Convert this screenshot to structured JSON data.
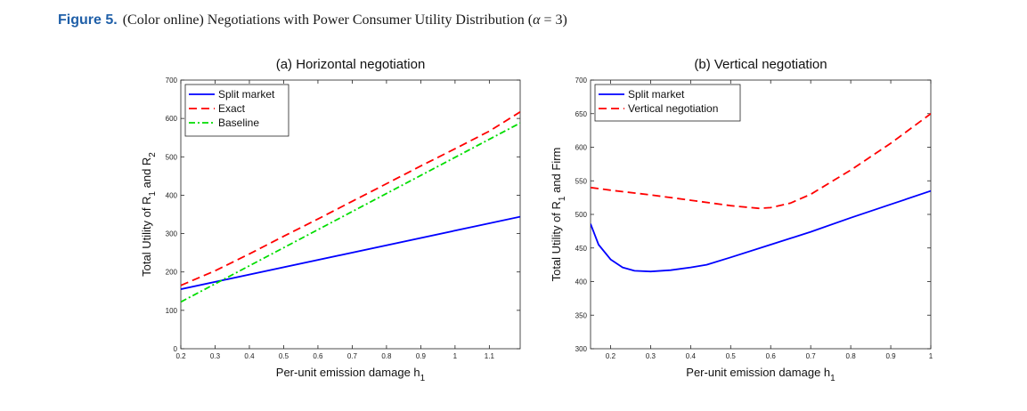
{
  "caption": {
    "figure_label": "Figure 5.",
    "text_before": "(Color online) Negotiations with Power Consumer Utility Distribution (",
    "alpha_symbol": "α",
    "text_after": " = 3)"
  },
  "chart_data": [
    {
      "type": "line",
      "title": "(a) Horizontal negotiation",
      "xlabel": "Per-unit emission damage h",
      "xlabel_sub": "1",
      "ylabel_parts": [
        "Total Utility of R",
        "1",
        " and R",
        "2"
      ],
      "xlim": [
        0.2,
        1.19
      ],
      "ylim": [
        0,
        700
      ],
      "xticks": [
        "0.2",
        "0.3",
        "0.4",
        "0.5",
        "0.6",
        "0.7",
        "0.8",
        "0.9",
        "1",
        "1.1"
      ],
      "yticks": [
        "0",
        "100",
        "200",
        "300",
        "400",
        "500",
        "600",
        "700"
      ],
      "legend_position": "top-left",
      "series": [
        {
          "name": "Split market",
          "color": "#0000ff",
          "dash": "solid",
          "x": [
            0.2,
            1.19
          ],
          "y": [
            155,
            344
          ]
        },
        {
          "name": "Exact",
          "color": "#ff0000",
          "dash": "dashed",
          "x": [
            0.2,
            0.3,
            0.4,
            0.5,
            0.6,
            0.7,
            0.8,
            0.9,
            1.0,
            1.1,
            1.19
          ],
          "y": [
            165,
            203,
            247,
            293,
            338,
            384,
            430,
            476,
            521,
            567,
            617
          ]
        },
        {
          "name": "Baseline",
          "color": "#00dd00",
          "dash": "dashdot",
          "x": [
            0.2,
            1.19
          ],
          "y": [
            122,
            588
          ]
        }
      ]
    },
    {
      "type": "line",
      "title": "(b) Vertical negotiation",
      "xlabel": "Per-unit emission damage h",
      "xlabel_sub": "1",
      "ylabel_parts": [
        "Total Utility of R",
        "1",
        " and Firm",
        ""
      ],
      "xlim": [
        0.15,
        1.0
      ],
      "ylim": [
        300,
        700
      ],
      "xticks": [
        "0.2",
        "0.3",
        "0.4",
        "0.5",
        "0.6",
        "0.7",
        "0.8",
        "0.9",
        "1"
      ],
      "yticks": [
        "300",
        "350",
        "400",
        "450",
        "500",
        "550",
        "600",
        "650",
        "700"
      ],
      "legend_position": "top-left",
      "series": [
        {
          "name": "Split market",
          "color": "#0000ff",
          "dash": "solid",
          "x": [
            0.15,
            0.17,
            0.2,
            0.23,
            0.26,
            0.3,
            0.35,
            0.4,
            0.44,
            0.5,
            0.6,
            0.7,
            0.8,
            0.9,
            1.0
          ],
          "y": [
            486,
            455,
            433,
            421,
            416,
            415,
            417,
            421,
            425,
            436,
            455,
            474,
            495,
            515,
            535
          ]
        },
        {
          "name": "Vertical negotiation",
          "color": "#ff0000",
          "dash": "dashed",
          "x": [
            0.15,
            0.2,
            0.3,
            0.4,
            0.5,
            0.57,
            0.6,
            0.65,
            0.7,
            0.8,
            0.9,
            1.0
          ],
          "y": [
            540,
            536,
            529,
            521,
            513,
            509,
            510,
            517,
            530,
            566,
            606,
            650
          ]
        }
      ]
    }
  ]
}
